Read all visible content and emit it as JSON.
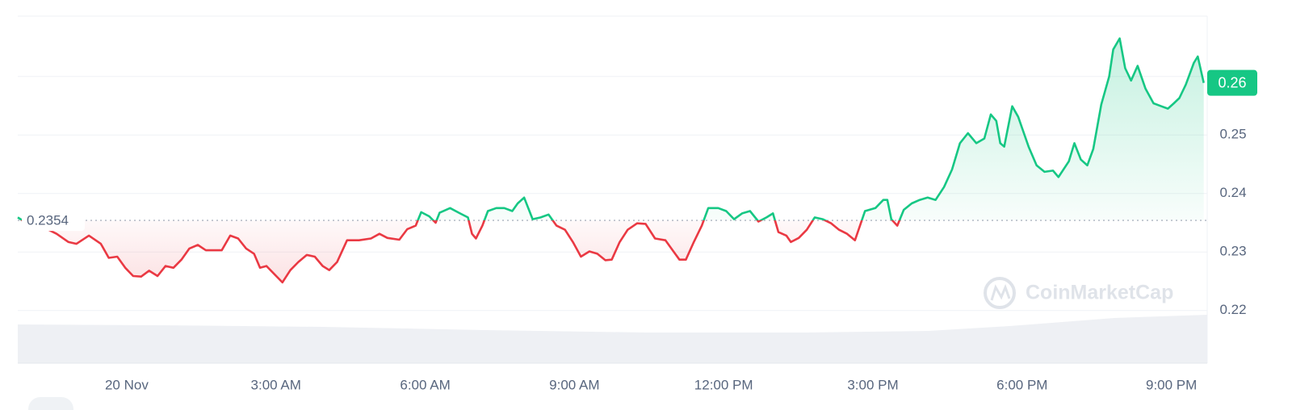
{
  "chart_data": {
    "type": "line",
    "x": [
      -2.19,
      -2.06,
      -1.74,
      -1.41,
      -1.17,
      -1.01,
      -0.76,
      -0.52,
      -0.36,
      -0.19,
      -0.03,
      0.13,
      0.29,
      0.45,
      0.62,
      0.78,
      0.94,
      1.1,
      1.26,
      1.43,
      1.59,
      1.75,
      1.91,
      2.08,
      2.24,
      2.4,
      2.56,
      2.68,
      2.81,
      2.97,
      3.13,
      3.29,
      3.45,
      3.62,
      3.78,
      3.94,
      4.07,
      4.23,
      4.43,
      4.67,
      4.91,
      5.08,
      5.24,
      5.48,
      5.64,
      5.81,
      5.92,
      6.08,
      6.21,
      6.29,
      6.5,
      6.7,
      6.86,
      6.94,
      7.02,
      7.15,
      7.26,
      7.43,
      7.59,
      7.75,
      7.86,
      7.99,
      8.16,
      8.32,
      8.48,
      8.64,
      8.81,
      8.97,
      9.13,
      9.3,
      9.46,
      9.62,
      9.75,
      9.91,
      10.07,
      10.26,
      10.43,
      10.62,
      10.83,
      10.99,
      11.11,
      11.24,
      11.4,
      11.56,
      11.69,
      11.89,
      12.05,
      12.21,
      12.37,
      12.53,
      12.7,
      12.86,
      12.99,
      13.1,
      13.26,
      13.35,
      13.51,
      13.67,
      13.83,
      13.99,
      14.16,
      14.32,
      14.48,
      14.64,
      14.84,
      15.05,
      15.21,
      15.29,
      15.37,
      15.49,
      15.62,
      15.78,
      15.94,
      16.1,
      16.26,
      16.43,
      16.59,
      16.75,
      16.91,
      17.08,
      17.24,
      17.37,
      17.48,
      17.56,
      17.64,
      17.8,
      17.92,
      18.13,
      18.29,
      18.45,
      18.62,
      18.73,
      18.94,
      19.05,
      19.18,
      19.31,
      19.43,
      19.59,
      19.75,
      19.83,
      19.96,
      20.07,
      20.19,
      20.32,
      20.48,
      20.64,
      20.8,
      20.93,
      21.05,
      21.16,
      21.29,
      21.45,
      21.53,
      21.65
    ],
    "values": [
      0.2359,
      0.2352,
      0.2345,
      0.2331,
      0.2317,
      0.2314,
      0.2328,
      0.2314,
      0.229,
      0.2292,
      0.2273,
      0.2259,
      0.2258,
      0.2268,
      0.2259,
      0.2276,
      0.2273,
      0.2287,
      0.2306,
      0.2312,
      0.2303,
      0.2303,
      0.2303,
      0.2328,
      0.2323,
      0.2306,
      0.2297,
      0.2273,
      0.2276,
      0.2262,
      0.2248,
      0.2269,
      0.2283,
      0.2295,
      0.2292,
      0.2276,
      0.2269,
      0.2283,
      0.232,
      0.232,
      0.2323,
      0.2331,
      0.2324,
      0.2321,
      0.2339,
      0.2345,
      0.2368,
      0.2361,
      0.235,
      0.2367,
      0.2375,
      0.2366,
      0.2359,
      0.2331,
      0.2323,
      0.2345,
      0.237,
      0.2375,
      0.2375,
      0.237,
      0.2383,
      0.2393,
      0.2356,
      0.2359,
      0.2364,
      0.2345,
      0.2338,
      0.2317,
      0.2292,
      0.2301,
      0.2297,
      0.2286,
      0.2287,
      0.2317,
      0.2338,
      0.2349,
      0.2348,
      0.2323,
      0.232,
      0.2301,
      0.2287,
      0.2287,
      0.2317,
      0.2345,
      0.2375,
      0.2375,
      0.237,
      0.2356,
      0.2366,
      0.237,
      0.2352,
      0.2359,
      0.2366,
      0.2334,
      0.2328,
      0.2317,
      0.2324,
      0.2338,
      0.2359,
      0.2356,
      0.2349,
      0.2338,
      0.2331,
      0.232,
      0.237,
      0.2375,
      0.2389,
      0.2389,
      0.2356,
      0.2345,
      0.2372,
      0.2383,
      0.2389,
      0.2393,
      0.2389,
      0.2411,
      0.2441,
      0.2486,
      0.2503,
      0.2486,
      0.2494,
      0.2535,
      0.2524,
      0.2486,
      0.248,
      0.2549,
      0.2531,
      0.248,
      0.2448,
      0.2437,
      0.2439,
      0.2428,
      0.2455,
      0.2486,
      0.2458,
      0.2448,
      0.2476,
      0.2552,
      0.26,
      0.2646,
      0.2665,
      0.2614,
      0.2593,
      0.2618,
      0.2579,
      0.2554,
      0.2549,
      0.2545,
      0.2554,
      0.2563,
      0.2586,
      0.2623,
      0.2634,
      0.2589
    ],
    "up_color": "#16c784",
    "down_color": "#ea3943",
    "baseline": 0.2354,
    "current_price": {
      "value": 0.2589,
      "label": "0.26"
    },
    "xlim": [
      -2.19,
      21.72
    ],
    "xticks": [
      {
        "value": 0,
        "label": "20 Nov"
      },
      {
        "value": 3,
        "label": "3:00 AM"
      },
      {
        "value": 6,
        "label": "6:00 AM"
      },
      {
        "value": 9,
        "label": "9:00 AM"
      },
      {
        "value": 12,
        "label": "12:00 PM"
      },
      {
        "value": 15,
        "label": "3:00 PM"
      },
      {
        "value": 18,
        "label": "6:00 PM"
      },
      {
        "value": 21,
        "label": "9:00 PM"
      }
    ],
    "ylim": [
      0.211,
      0.2703
    ],
    "yticks": [
      0.22,
      0.23,
      0.24,
      0.25,
      0.26
    ],
    "grid": true,
    "watermark": "CoinMarketCap"
  }
}
